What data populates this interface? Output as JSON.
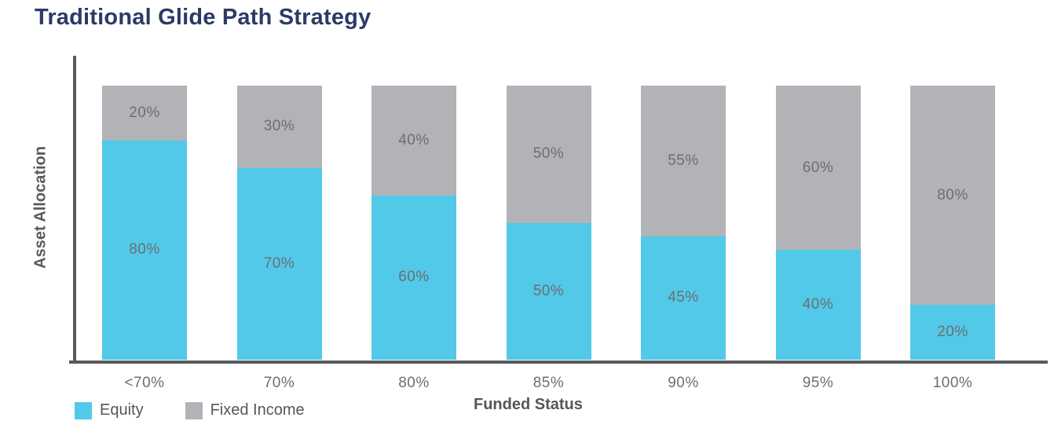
{
  "chart": {
    "title": "Traditional Glide Path Strategy",
    "ylabel": "Asset Allocation",
    "xlabel": "Funded Status"
  },
  "legend": {
    "equity_label": "Equity",
    "fixed_income_label": "Fixed Income"
  },
  "colors": {
    "equity": "#52C9E8",
    "fixed_income": "#B2B3B6",
    "title": "#2B3A67",
    "axis": "#58595B",
    "segment_label": "#6D6E71",
    "tick_label": "#6D6E71",
    "text": "#55565A"
  },
  "chart_data": {
    "type": "bar",
    "stacked": true,
    "unit": "%",
    "title": "Traditional Glide Path Strategy",
    "xlabel": "Funded Status",
    "ylabel": "Asset Allocation",
    "categories": [
      "<70%",
      "70%",
      "80%",
      "85%",
      "90%",
      "95%",
      "100%"
    ],
    "series": [
      {
        "name": "Equity",
        "color": "#52C9E8",
        "values": [
          80,
          70,
          60,
          50,
          45,
          40,
          20
        ]
      },
      {
        "name": "Fixed Income",
        "color": "#B2B3B6",
        "values": [
          20,
          30,
          40,
          50,
          55,
          60,
          80
        ]
      }
    ],
    "ylim": [
      0,
      100
    ],
    "grid": false,
    "axis_ticks_y": [],
    "legend_position": "bottom-left",
    "data_labels": "percent-inside-segments"
  }
}
